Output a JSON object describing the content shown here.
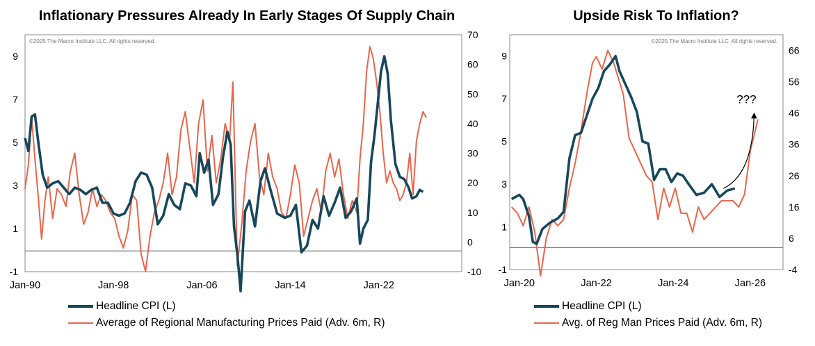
{
  "colors": {
    "cpi": "#17475c",
    "prices_paid": "#e8654a",
    "frame": "#888888",
    "baseline": "#777777"
  },
  "chart_data": [
    {
      "type": "line",
      "title": "Inflationary Pressures Already In Early Stages Of Supply Chain",
      "copyright": "©2025 The Macro Institute LLC. All rights reserved.",
      "x_ticks": [
        "Jan-90",
        "Jan-98",
        "Jan-06",
        "Jan-14",
        "Jan-22"
      ],
      "x_range": [
        1990.0,
        2029.5
      ],
      "y_left": {
        "range": [
          -1,
          10
        ],
        "ticks": [
          -1,
          1,
          3,
          5,
          7,
          9
        ]
      },
      "y_right": {
        "range": [
          -10,
          70
        ],
        "ticks": [
          -10,
          0,
          10,
          20,
          30,
          40,
          50,
          60,
          70
        ]
      },
      "baseline_right": -3,
      "legend": [
        "Headline CPI (L)",
        "Average of Regional Manufacturing Prices Paid (Adv. 6m, R)"
      ],
      "series": [
        {
          "name": "Headline CPI (L)",
          "axis": "left",
          "x": [
            1990.0,
            1990.3,
            1990.6,
            1990.9,
            1991.2,
            1991.6,
            1992.0,
            1992.5,
            1993.0,
            1993.5,
            1994.0,
            1994.5,
            1995.0,
            1995.5,
            1996.0,
            1996.5,
            1997.0,
            1997.5,
            1998.0,
            1998.5,
            1999.0,
            1999.5,
            2000.0,
            2000.5,
            2001.0,
            2001.5,
            2002.0,
            2002.5,
            2003.0,
            2003.5,
            2004.0,
            2004.5,
            2005.0,
            2005.5,
            2005.8,
            2006.2,
            2006.6,
            2007.0,
            2007.5,
            2007.9,
            2008.3,
            2008.6,
            2008.9,
            2009.2,
            2009.5,
            2009.9,
            2010.3,
            2010.8,
            2011.3,
            2011.7,
            2012.2,
            2012.8,
            2013.5,
            2014.0,
            2014.5,
            2015.0,
            2015.5,
            2016.0,
            2016.5,
            2017.0,
            2017.5,
            2018.0,
            2018.5,
            2019.0,
            2019.5,
            2020.0,
            2020.3,
            2020.6,
            2021.0,
            2021.3,
            2021.6,
            2021.9,
            2022.2,
            2022.5,
            2022.8,
            2023.1,
            2023.5,
            2023.9,
            2024.3,
            2024.7,
            2025.0,
            2025.4,
            2025.7,
            2026.0
          ],
          "y": [
            5.2,
            4.6,
            6.2,
            6.3,
            5.0,
            3.5,
            2.9,
            3.1,
            3.2,
            2.9,
            2.6,
            2.9,
            2.8,
            2.6,
            2.8,
            2.9,
            2.2,
            2.2,
            1.7,
            1.6,
            1.7,
            2.2,
            3.2,
            3.6,
            3.5,
            2.9,
            1.2,
            1.6,
            2.6,
            2.1,
            1.9,
            3.1,
            3.0,
            2.5,
            4.5,
            3.6,
            4.2,
            2.1,
            2.6,
            4.3,
            5.5,
            4.9,
            1.1,
            -0.2,
            -1.9,
            1.8,
            2.3,
            1.1,
            3.2,
            3.8,
            2.8,
            1.7,
            1.5,
            1.6,
            2.1,
            -0.1,
            0.2,
            1.4,
            1.0,
            2.5,
            1.6,
            2.2,
            2.9,
            1.5,
            1.8,
            2.4,
            0.3,
            1.0,
            1.4,
            4.1,
            5.3,
            6.8,
            8.3,
            9.0,
            8.2,
            6.0,
            4.0,
            3.4,
            3.3,
            2.9,
            2.4,
            2.5,
            2.8,
            2.7
          ]
        },
        {
          "name": "Average of Regional Manufacturing Prices Paid (Adv. 6m, R)",
          "axis": "right",
          "x": [
            1990.0,
            1990.3,
            1990.6,
            1990.9,
            1991.2,
            1991.5,
            1991.8,
            1992.1,
            1992.5,
            1992.9,
            1993.3,
            1993.7,
            1994.1,
            1994.5,
            1994.9,
            1995.3,
            1995.7,
            1996.1,
            1996.5,
            1996.9,
            1997.3,
            1997.7,
            1998.1,
            1998.5,
            1998.9,
            1999.3,
            1999.7,
            2000.1,
            2000.5,
            2000.9,
            2001.3,
            2001.7,
            2002.1,
            2002.5,
            2002.9,
            2003.3,
            2003.7,
            2004.1,
            2004.5,
            2004.9,
            2005.3,
            2005.7,
            2006.1,
            2006.5,
            2006.9,
            2007.3,
            2007.7,
            2008.1,
            2008.5,
            2008.8,
            2009.2,
            2009.6,
            2010.0,
            2010.4,
            2010.8,
            2011.2,
            2011.6,
            2012.0,
            2012.4,
            2012.8,
            2013.2,
            2013.6,
            2014.0,
            2014.4,
            2014.8,
            2015.2,
            2015.6,
            2016.0,
            2016.4,
            2016.8,
            2017.2,
            2017.6,
            2018.0,
            2018.4,
            2018.8,
            2019.2,
            2019.6,
            2020.0,
            2020.3,
            2020.6,
            2020.9,
            2021.2,
            2021.5,
            2021.8,
            2022.1,
            2022.4,
            2022.7,
            2023.0,
            2023.3,
            2023.6,
            2023.9,
            2024.2,
            2024.5,
            2024.8,
            2025.1,
            2025.4,
            2025.7,
            2026.0,
            2026.3
          ],
          "y": [
            18,
            26,
            42,
            28,
            15,
            1,
            14,
            22,
            8,
            18,
            16,
            12,
            24,
            30,
            16,
            6,
            10,
            18,
            12,
            16,
            14,
            10,
            8,
            2,
            -2,
            4,
            16,
            14,
            -4,
            -10,
            2,
            10,
            14,
            20,
            30,
            16,
            22,
            38,
            44,
            32,
            20,
            40,
            48,
            24,
            36,
            20,
            28,
            40,
            34,
            54,
            -8,
            6,
            24,
            34,
            40,
            22,
            16,
            30,
            22,
            18,
            10,
            8,
            16,
            26,
            20,
            2,
            8,
            14,
            18,
            10,
            24,
            30,
            22,
            28,
            16,
            8,
            14,
            10,
            28,
            40,
            58,
            66,
            62,
            54,
            44,
            30,
            20,
            24,
            20,
            18,
            14,
            16,
            20,
            30,
            16,
            34,
            40,
            44,
            42
          ]
        }
      ]
    },
    {
      "type": "line",
      "title": "Upside Risk To Inflation?",
      "copyright": "©2025 The Macro Institute LLC. All rights reserved.",
      "annotation": "???",
      "x_ticks": [
        "Jan-20",
        "Jan-22",
        "Jan-24",
        "Jan-26"
      ],
      "x_range": [
        2019.75,
        2026.85
      ],
      "y_left": {
        "range": [
          -1,
          10
        ],
        "ticks": [
          -1,
          1,
          3,
          5,
          7,
          9
        ]
      },
      "y_right": {
        "range": [
          -4,
          71
        ],
        "ticks": [
          -4,
          6,
          16,
          26,
          36,
          46,
          56,
          66
        ]
      },
      "baseline_right": 3,
      "legend": [
        "Headline CPI (L)",
        "Avg. of Reg Man Prices Paid (Adv. 6m, R)"
      ],
      "series": [
        {
          "name": "Headline CPI (L)",
          "axis": "left",
          "x": [
            2019.8,
            2020.0,
            2020.1,
            2020.25,
            2020.35,
            2020.45,
            2020.6,
            2020.8,
            2021.0,
            2021.15,
            2021.3,
            2021.45,
            2021.6,
            2021.75,
            2021.9,
            2022.05,
            2022.2,
            2022.35,
            2022.5,
            2022.6,
            2022.75,
            2022.9,
            2023.05,
            2023.2,
            2023.35,
            2023.5,
            2023.65,
            2023.8,
            2023.95,
            2024.1,
            2024.25,
            2024.4,
            2024.6,
            2024.8,
            2025.0,
            2025.2,
            2025.4,
            2025.6
          ],
          "y": [
            2.3,
            2.5,
            2.3,
            1.5,
            0.3,
            0.2,
            0.9,
            1.2,
            1.4,
            1.7,
            4.2,
            5.3,
            5.4,
            6.2,
            7.0,
            7.5,
            8.3,
            8.6,
            9.0,
            8.3,
            7.7,
            7.1,
            6.4,
            5.0,
            4.9,
            3.2,
            3.7,
            3.7,
            3.1,
            3.5,
            3.4,
            3.0,
            2.5,
            2.6,
            3.0,
            2.4,
            2.7,
            2.8
          ]
        },
        {
          "name": "Avg. of Reg Man Prices Paid (Adv. 6m, R)",
          "axis": "right",
          "x": [
            2019.8,
            2019.95,
            2020.1,
            2020.25,
            2020.4,
            2020.55,
            2020.7,
            2020.85,
            2021.0,
            2021.15,
            2021.3,
            2021.45,
            2021.6,
            2021.75,
            2021.9,
            2022.0,
            2022.15,
            2022.3,
            2022.45,
            2022.55,
            2022.7,
            2022.85,
            2023.0,
            2023.15,
            2023.3,
            2023.45,
            2023.6,
            2023.75,
            2023.9,
            2024.05,
            2024.2,
            2024.35,
            2024.5,
            2024.65,
            2024.8,
            2024.95,
            2025.1,
            2025.25,
            2025.4,
            2025.55,
            2025.7,
            2025.85,
            2026.0,
            2026.2
          ],
          "y": [
            16,
            14,
            10,
            16,
            8,
            -6,
            6,
            12,
            10,
            12,
            22,
            30,
            40,
            52,
            62,
            64,
            60,
            66,
            62,
            58,
            52,
            38,
            34,
            30,
            26,
            24,
            12,
            22,
            16,
            22,
            14,
            14,
            8,
            16,
            12,
            14,
            16,
            18,
            18,
            18,
            16,
            20,
            34,
            44
          ]
        }
      ],
      "arrow": {
        "from": [
          2025.3,
          2.8
        ],
        "to": [
          2026.1,
          6.3
        ],
        "axis": "left"
      }
    }
  ]
}
